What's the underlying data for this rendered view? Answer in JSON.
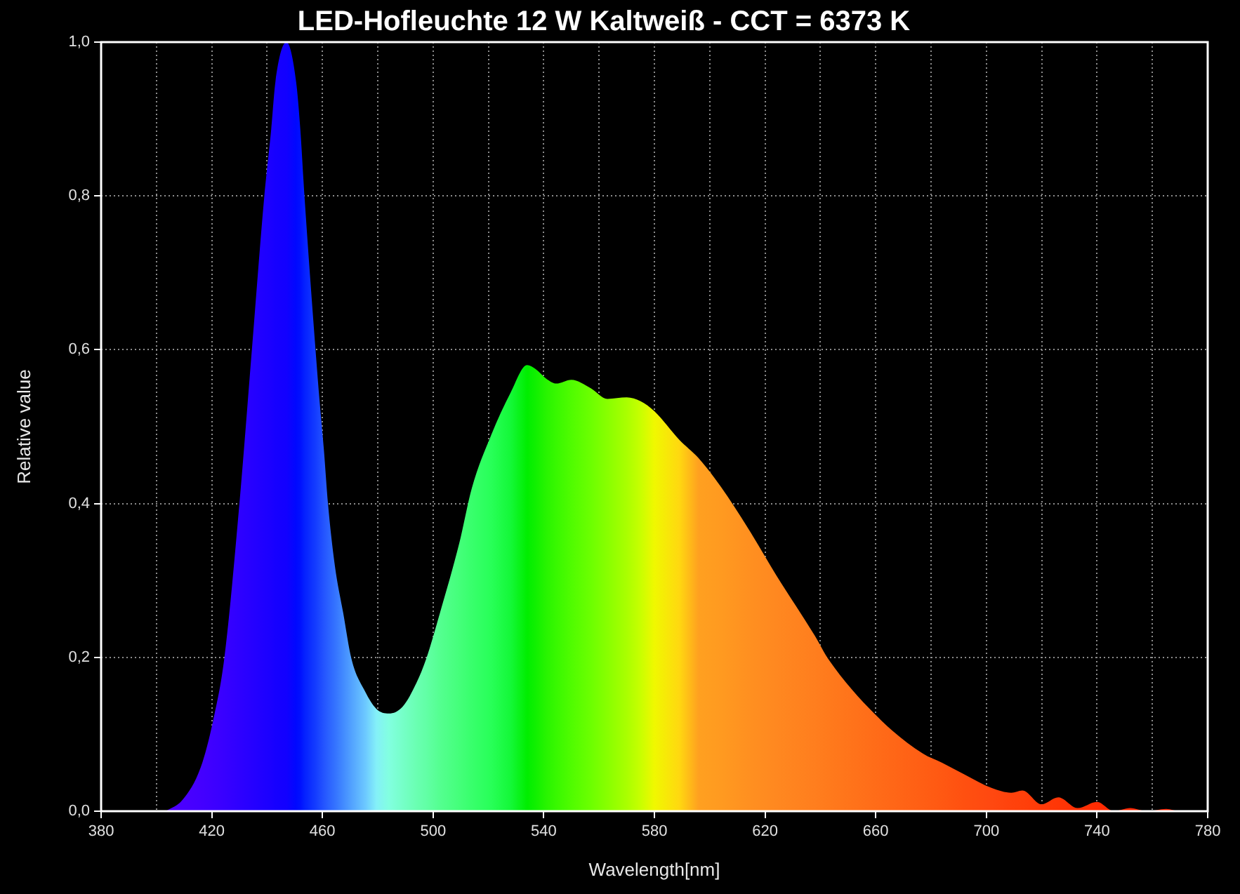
{
  "chart_data": {
    "type": "area",
    "title": "LED-Hofleuchte 12 W Kaltweiß - CCT = 6373 K",
    "xlabel": "Wavelength[nm]",
    "ylabel": "Relative value",
    "x": [
      403.5,
      409.5,
      416,
      420.5,
      424.5,
      430,
      434.5,
      439,
      441.5,
      443,
      447,
      450.5,
      452,
      453.5,
      457.5,
      459,
      460.5,
      462,
      464.5,
      467.5,
      470.5,
      475.5,
      479.5,
      484,
      489,
      494,
      497.5,
      502.5,
      509.5,
      514,
      521,
      528,
      534,
      537,
      541,
      544.5,
      550,
      557,
      563,
      570,
      575,
      580,
      589,
      596,
      604,
      614,
      624,
      638,
      643,
      662,
      677,
      684,
      692,
      702,
      709,
      713,
      720,
      726,
      733,
      740,
      746,
      752,
      758,
      765,
      770,
      778
    ],
    "values": [
      0,
      0.015,
      0.057,
      0.118,
      0.198,
      0.4,
      0.6,
      0.8,
      0.887,
      0.948,
      1,
      0.948,
      0.887,
      0.8,
      0.6,
      0.532,
      0.471,
      0.4,
      0.319,
      0.258,
      0.198,
      0.155,
      0.133,
      0.127,
      0.136,
      0.167,
      0.198,
      0.258,
      0.349,
      0.42,
      0.489,
      0.544,
      0.58,
      0.575,
      0.562,
      0.556,
      0.561,
      0.55,
      0.536,
      0.538,
      0.533,
      0.52,
      0.483,
      0.459,
      0.422,
      0.367,
      0.307,
      0.228,
      0.197,
      0.118,
      0.075,
      0.063,
      0.048,
      0.03,
      0.024,
      0.027,
      0.009,
      0.018,
      0.004,
      0.012,
      0,
      0.004,
      0,
      0.003,
      0,
      0
    ],
    "colors": [
      "#5000ff",
      "#4a00ff",
      "#4400ff",
      "#3e00ff",
      "#3800ff",
      "#2e00ff",
      "#2600ff",
      "#1e00ff",
      "#1a00ff",
      "#1600ff",
      "#1200ff",
      "#0008ff",
      "#0010ff",
      "#0420ff",
      "#143cff",
      "#1c48ff",
      "#2454ff",
      "#2a60ff",
      "#3472ff",
      "#428aff",
      "#52a2ff",
      "#6cc8ff",
      "#84f0f8",
      "#82ffe0",
      "#76ffc8",
      "#6affb2",
      "#62ffa6",
      "#54ff90",
      "#44ff7a",
      "#38ff6c",
      "#28ff58",
      "#14f838",
      "#00ee00",
      "#10f000",
      "#28f400",
      "#38f800",
      "#50fc00",
      "#6cff00",
      "#88ff00",
      "#aaff00",
      "#c8ff00",
      "#f0f800",
      "#ffd810",
      "#ffa020",
      "#ff9a20",
      "#ff9020",
      "#ff8820",
      "#ff7e1e",
      "#ff7a1c",
      "#ff6a18",
      "#ff5e14",
      "#ff5812",
      "#ff5010",
      "#ff4810",
      "#ff420c",
      "#ff400a",
      "#ff3a08",
      "#ff3606",
      "#ff3004",
      "#ff2c02",
      "#ff2800",
      "#ff2600",
      "#ff2400",
      "#ff2200",
      "#ff2000",
      "#ff1e00"
    ],
    "xlim": [
      380,
      780
    ],
    "xticks": [
      380,
      {
        "value": 400,
        "label": null
      },
      420,
      {
        "value": 440,
        "label": null
      },
      460,
      {
        "value": 480,
        "label": null
      },
      500,
      {
        "value": 520,
        "label": null
      },
      540,
      {
        "value": 560,
        "label": null
      },
      580,
      {
        "value": 600,
        "label": null
      },
      620,
      {
        "value": 640,
        "label": null
      },
      660,
      {
        "value": 680,
        "label": null
      },
      700,
      {
        "value": 720,
        "label": null
      },
      740,
      {
        "value": 760,
        "label": null
      },
      780
    ],
    "ylim": [
      0,
      1
    ],
    "yticks": [
      {
        "value": 0,
        "label": "0,0"
      },
      {
        "value": 0.2,
        "label": "0,2"
      },
      {
        "value": 0.4,
        "label": "0,4"
      },
      {
        "value": 0.6,
        "label": "0,6"
      },
      {
        "value": 0.8,
        "label": "0,8"
      },
      {
        "value": 1,
        "label": "1,0"
      }
    ],
    "grid": true
  }
}
